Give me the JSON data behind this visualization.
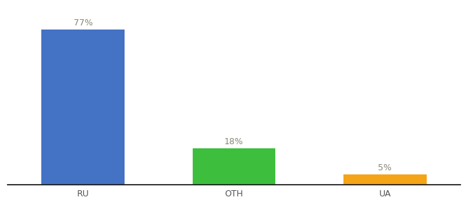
{
  "categories": [
    "RU",
    "OTH",
    "UA"
  ],
  "values": [
    77,
    18,
    5
  ],
  "bar_colors": [
    "#4472c4",
    "#3dbf3d",
    "#f4a416"
  ],
  "label_format": [
    "77%",
    "18%",
    "5%"
  ],
  "ylim": [
    0,
    88
  ],
  "xlim": [
    -0.5,
    2.5
  ],
  "background_color": "#ffffff",
  "label_fontsize": 9,
  "tick_fontsize": 9,
  "bar_width": 0.55
}
